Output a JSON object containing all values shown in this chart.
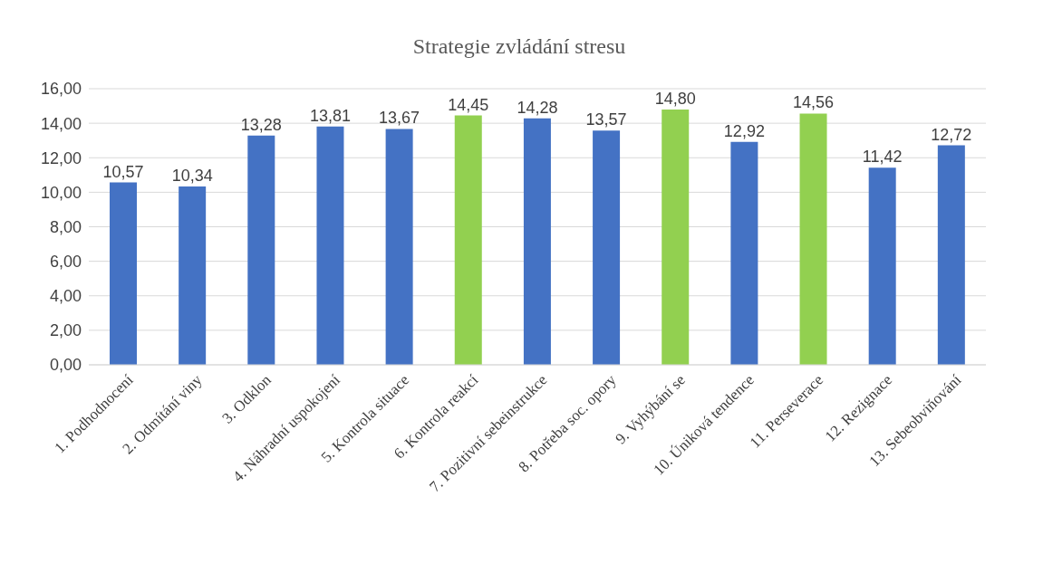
{
  "chart_data": {
    "type": "bar",
    "title": "Strategie zvládání stresu",
    "categories": [
      "1. Podhodnocení",
      "2. Odmítání viny",
      "3. Odklon",
      "4. Náhradní uspokojení",
      "5. Kontrola situace",
      "6. Kontrola reakcí",
      "7. Pozitivní sebeinstrukce",
      "8. Potřeba soc. opory",
      "9. Vyhýbání se",
      "10. Úniková tendence",
      "11. Perseverace",
      "12. Rezignace",
      "13. Sebeobviňování"
    ],
    "values": [
      10.57,
      10.34,
      13.28,
      13.81,
      13.67,
      14.45,
      14.28,
      13.57,
      14.8,
      12.92,
      14.56,
      11.42,
      12.72
    ],
    "colors": [
      "#4472c4",
      "#4472c4",
      "#4472c4",
      "#4472c4",
      "#4472c4",
      "#92d050",
      "#4472c4",
      "#4472c4",
      "#92d050",
      "#4472c4",
      "#92d050",
      "#4472c4",
      "#4472c4"
    ],
    "value_labels": [
      "10,57",
      "10,34",
      "13,28",
      "13,81",
      "13,67",
      "14,45",
      "14,28",
      "13,57",
      "14,80",
      "12,92",
      "14,56",
      "11,42",
      "12,72"
    ],
    "ylim": [
      0,
      16
    ],
    "yticks": [
      {
        "value": 0,
        "label": "0,00"
      },
      {
        "value": 2,
        "label": "2,00"
      },
      {
        "value": 4,
        "label": "4,00"
      },
      {
        "value": 6,
        "label": "6,00"
      },
      {
        "value": 8,
        "label": "8,00"
      },
      {
        "value": 10,
        "label": "10,00"
      },
      {
        "value": 12,
        "label": "12,00"
      },
      {
        "value": 14,
        "label": "14,00"
      },
      {
        "value": 16,
        "label": "16,00"
      }
    ],
    "grid": "y"
  }
}
